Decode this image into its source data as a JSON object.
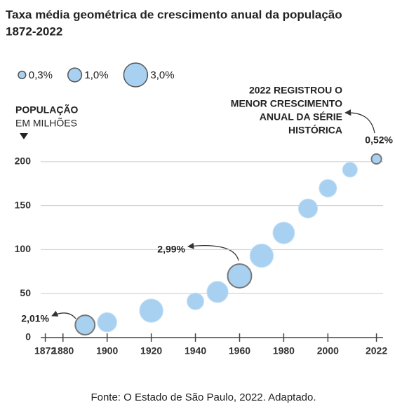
{
  "chart_data": {
    "type": "bubble",
    "title": [
      "Taxa média geométrica de crescimento anual da população",
      "1872-2022"
    ],
    "y_label": [
      "POPULAÇÃO",
      "EM MILHÕES"
    ],
    "annotation": [
      "2022 REGISTROU O",
      "MENOR CRESCIMENTO",
      "ANUAL DA SÉRIE",
      "HISTÓRICA"
    ],
    "source": "Fonte: O Estado de São Paulo, 2022. Adaptado.",
    "x": [
      1890,
      1900,
      1920,
      1940,
      1950,
      1960,
      1970,
      1980,
      1991,
      2000,
      2010,
      2022
    ],
    "values": [
      14.3,
      17.4,
      30.6,
      41.2,
      51.9,
      70.1,
      93.1,
      119,
      146.8,
      169.8,
      190.8,
      203.1
    ],
    "sizes": [
      2.01,
      1.98,
      2.91,
      1.49,
      2.39,
      2.99,
      2.89,
      2.48,
      1.93,
      1.64,
      1.17,
      0.52
    ],
    "size_labels": [
      "2,01%",
      null,
      null,
      null,
      null,
      "2,99%",
      null,
      null,
      null,
      null,
      null,
      "0,52%"
    ],
    "color": "#a8d0f0",
    "size_legend": [
      {
        "value": 0.3,
        "label": "0,3%"
      },
      {
        "value": 1.0,
        "label": "1,0%"
      },
      {
        "value": 3.0,
        "label": "3,0%"
      }
    ],
    "xlim": [
      1868,
      2025
    ],
    "xticks": [
      1872,
      1880,
      1900,
      1920,
      1940,
      1960,
      1980,
      2000,
      2022
    ],
    "ylim": [
      0,
      215
    ],
    "yticks": [
      0,
      50,
      100,
      150,
      200
    ],
    "grid": true
  }
}
